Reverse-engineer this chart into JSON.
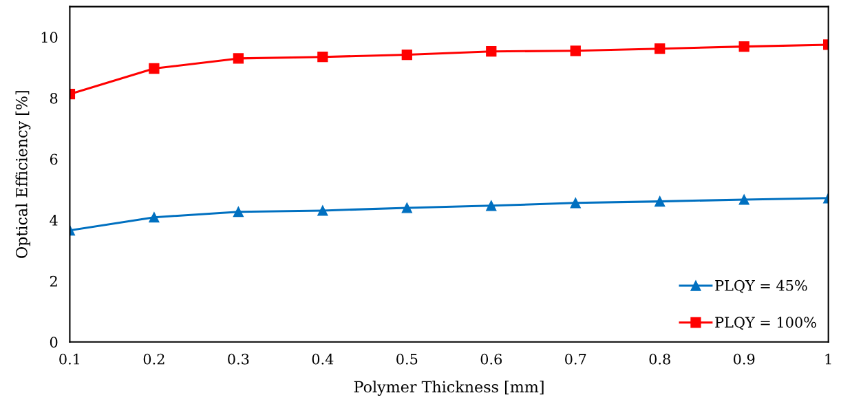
{
  "chart_data": {
    "type": "line",
    "xlabel": "Polymer Thickness [mm]",
    "ylabel": "Optical Efficiency [%]",
    "x": [
      0.1,
      0.2,
      0.3,
      0.4,
      0.5,
      0.6,
      0.7,
      0.8,
      0.9,
      1
    ],
    "series": [
      {
        "name": "PLQY = 45%",
        "color": "#0070c0",
        "marker": "triangle",
        "values": [
          3.66,
          4.09,
          4.27,
          4.31,
          4.4,
          4.47,
          4.56,
          4.61,
          4.67,
          4.72
        ]
      },
      {
        "name": "PLQY = 100%",
        "color": "#ff0000",
        "marker": "square",
        "values": [
          8.13,
          8.97,
          9.3,
          9.35,
          9.42,
          9.53,
          9.55,
          9.62,
          9.69,
          9.75
        ]
      }
    ],
    "xlim": [
      0.1,
      1
    ],
    "xticks": [
      0.1,
      0.2,
      0.3,
      0.4,
      0.5,
      0.6,
      0.7,
      0.8,
      0.9,
      1
    ],
    "ylim": [
      0,
      11
    ],
    "yticks": [
      0,
      2,
      4,
      6,
      8,
      10
    ],
    "grid": false,
    "legend": "bottom right",
    "line_style": "solid"
  }
}
